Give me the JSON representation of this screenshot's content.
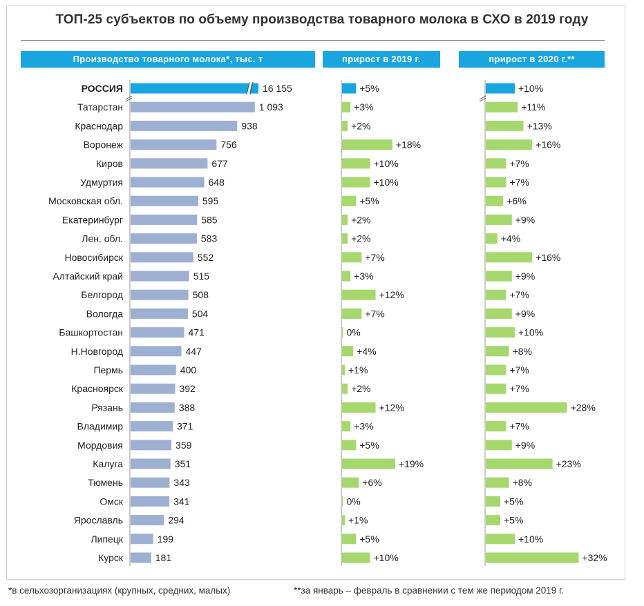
{
  "title": "ТОП-25 субъектов по объему производства товарного молока в СХО в 2019 году",
  "headers": {
    "production": "Производство товарного молока*, тыс. т",
    "growth2019": "прирост в 2019 г.",
    "growth2020": "прирост в 2020 г.**"
  },
  "footnotes": {
    "left": "*в сельхозорганизациях (крупных, средних, малых)",
    "right": "**за январь – февраль в сравнении с тем же периодом 2019 г."
  },
  "colors": {
    "highlight": "#19a6e0",
    "production_bar": "#9eb0d2",
    "growth_bar": "#a6d86e",
    "axis": "#9a9a9a"
  },
  "chart_data": [
    {
      "type": "bar",
      "orientation": "horizontal",
      "title": "Производство товарного молока*, тыс. т",
      "axis_break": true,
      "categories": [
        "РОССИЯ",
        "Татарстан",
        "Краснодар",
        "Воронеж",
        "Киров",
        "Удмуртия",
        "Московская обл.",
        "Екатеринбург",
        "Лен. обл.",
        "Новосибирск",
        "Алтайский край",
        "Белгород",
        "Вологда",
        "Башкортостан",
        "Н.Новгород",
        "Пермь",
        "Красноярск",
        "Рязань",
        "Владимир",
        "Мордовия",
        "Калуга",
        "Тюмень",
        "Омск",
        "Ярославль",
        "Липецк",
        "Курск"
      ],
      "values": [
        16155,
        1093,
        938,
        756,
        677,
        648,
        595,
        585,
        583,
        552,
        515,
        508,
        504,
        471,
        447,
        400,
        392,
        388,
        371,
        359,
        351,
        343,
        341,
        294,
        199,
        181
      ],
      "labels": [
        "16 155",
        "1 093",
        "938",
        "756",
        "677",
        "648",
        "595",
        "585",
        "583",
        "552",
        "515",
        "508",
        "504",
        "471",
        "447",
        "400",
        "392",
        "388",
        "371",
        "359",
        "351",
        "343",
        "341",
        "294",
        "199",
        "181"
      ]
    },
    {
      "type": "bar",
      "orientation": "horizontal",
      "title": "прирост в 2019 г.",
      "unit": "%",
      "values": [
        5,
        3,
        2,
        18,
        10,
        10,
        5,
        2,
        2,
        7,
        3,
        12,
        7,
        0,
        4,
        1,
        2,
        12,
        3,
        5,
        19,
        6,
        0,
        1,
        5,
        10
      ],
      "labels": [
        "+5%",
        "+3%",
        "+2%",
        "+18%",
        "+10%",
        "+10%",
        "+5%",
        "+2%",
        "+2%",
        "+7%",
        "+3%",
        "+12%",
        "+7%",
        "0%",
        "+4%",
        "+1%",
        "+2%",
        "+12%",
        "+3%",
        "+5%",
        "+19%",
        "+6%",
        "0%",
        "+1%",
        "+5%",
        "+10%"
      ]
    },
    {
      "type": "bar",
      "orientation": "horizontal",
      "title": "прирост в 2020 г.**",
      "unit": "%",
      "values": [
        10,
        11,
        13,
        16,
        7,
        7,
        6,
        9,
        4,
        16,
        9,
        7,
        9,
        10,
        8,
        7,
        7,
        28,
        7,
        9,
        23,
        8,
        5,
        5,
        10,
        32
      ],
      "labels": [
        "+10%",
        "+11%",
        "+13%",
        "+16%",
        "+7%",
        "+7%",
        "+6%",
        "+9%",
        "+4%",
        "+16%",
        "+9%",
        "+7%",
        "+9%",
        "+10%",
        "+8%",
        "+7%",
        "+7%",
        "+28%",
        "+7%",
        "+9%",
        "+23%",
        "+8%",
        "+5%",
        "+5%",
        "+10%",
        "+32%"
      ]
    }
  ]
}
